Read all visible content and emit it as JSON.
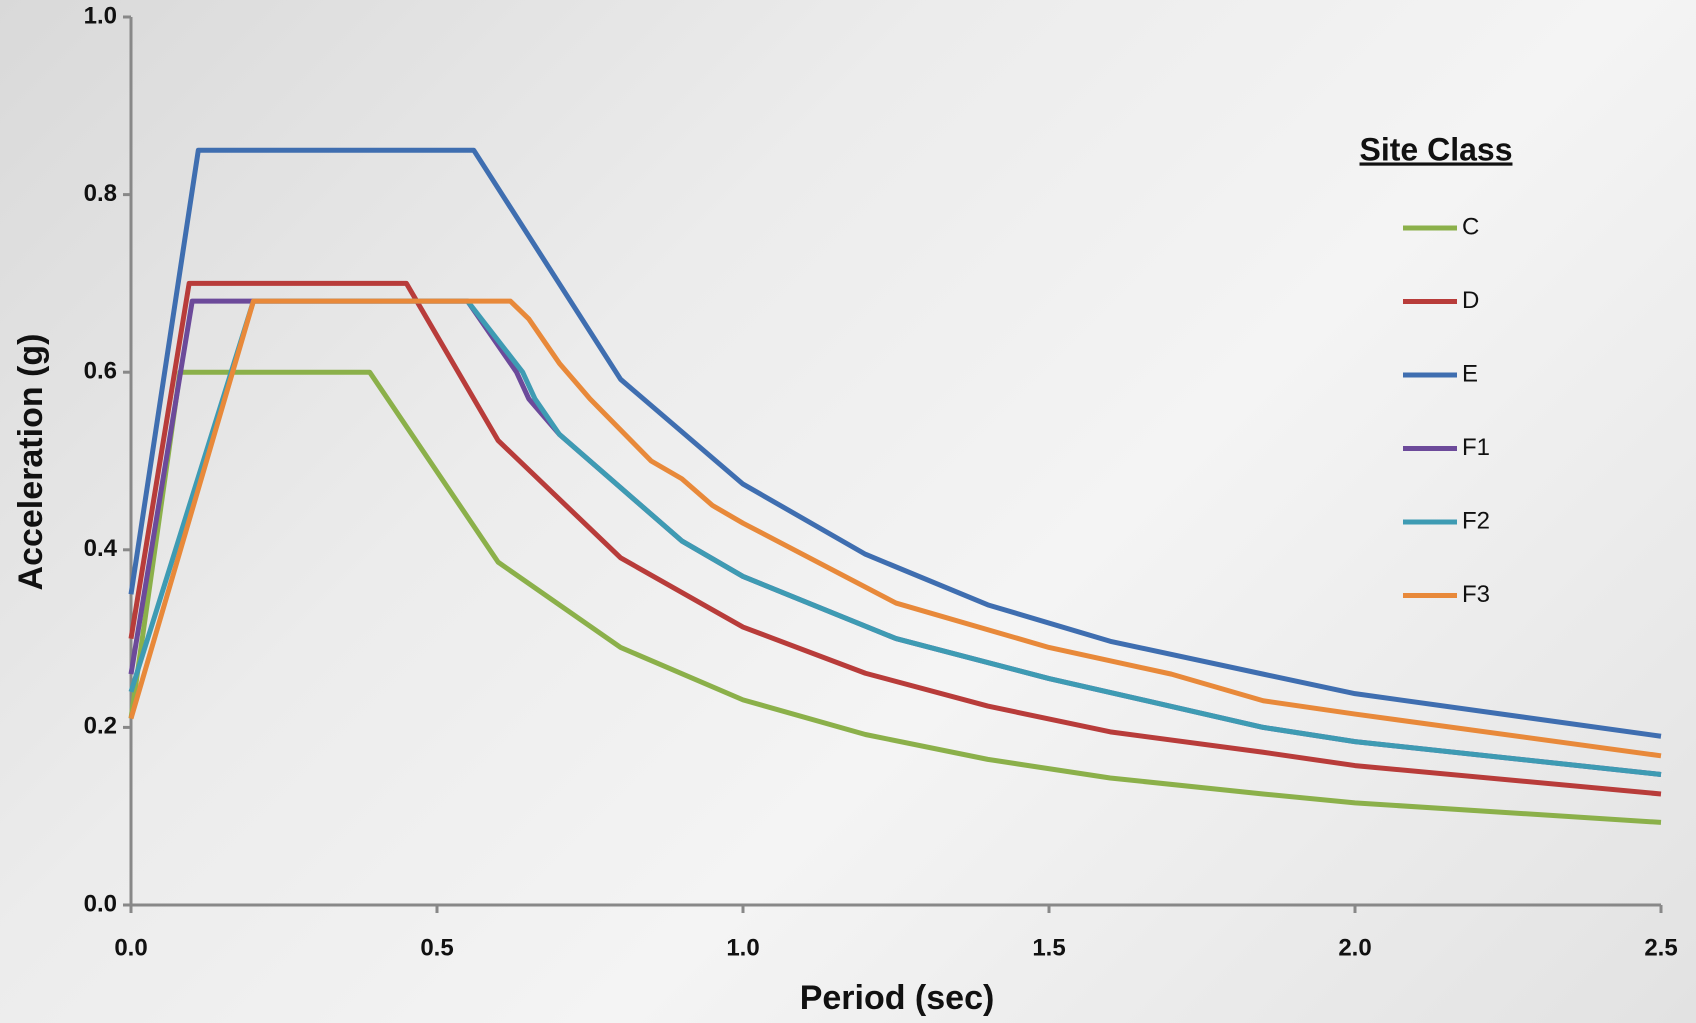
{
  "chart_data": {
    "type": "line",
    "x_label": "Period (sec)",
    "y_label": "Acceleration (g)",
    "legend_title": "Site Class",
    "legend_position": "right",
    "xlim": [
      0,
      2.5
    ],
    "ylim": [
      0,
      1.0
    ],
    "xticks": [
      {
        "value": 0,
        "label": "0.0"
      },
      0.5,
      {
        "value": 1,
        "label": "1.0"
      },
      1.5,
      {
        "value": 2,
        "label": "2.0"
      },
      2.5
    ],
    "yticks": [
      {
        "value": 0,
        "label": "0.0"
      },
      0.2,
      0.4,
      0.6,
      0.8,
      {
        "value": 1,
        "label": "1.0"
      }
    ],
    "series": [
      {
        "name": "C",
        "color": "#8bb04a",
        "x": [
          0,
          0.08,
          0.39,
          0.6,
          0.8,
          1.0,
          1.2,
          1.4,
          1.6,
          1.85,
          2.0,
          2.5
        ],
        "values": [
          0.21,
          0.6,
          0.6,
          0.386,
          0.29,
          0.231,
          0.192,
          0.164,
          0.143,
          0.125,
          0.115,
          0.093
        ]
      },
      {
        "name": "D",
        "color": "#b83c3a",
        "x": [
          0,
          0.095,
          0.45,
          0.6,
          0.8,
          1.0,
          1.2,
          1.4,
          1.6,
          1.85,
          2.0,
          2.5
        ],
        "values": [
          0.3,
          0.7,
          0.7,
          0.523,
          0.391,
          0.313,
          0.261,
          0.224,
          0.195,
          0.172,
          0.157,
          0.125
        ]
      },
      {
        "name": "E",
        "color": "#3f6eb0",
        "x": [
          0,
          0.11,
          0.56,
          0.8,
          1.0,
          1.2,
          1.4,
          1.6,
          1.85,
          2.0,
          2.5
        ],
        "values": [
          0.35,
          0.85,
          0.85,
          0.592,
          0.474,
          0.395,
          0.338,
          0.297,
          0.26,
          0.238,
          0.19
        ]
      },
      {
        "name": "F1",
        "color": "#6c4a9a",
        "x": [
          0,
          0.1,
          0.55,
          0.63,
          0.65,
          0.7,
          0.9,
          1.0,
          1.25,
          1.5,
          1.85,
          2.0,
          2.5
        ],
        "values": [
          0.26,
          0.68,
          0.68,
          0.6,
          0.57,
          0.53,
          0.41,
          0.37,
          0.3,
          0.255,
          0.2,
          0.184,
          0.147
        ]
      },
      {
        "name": "F2",
        "color": "#3e9bb3",
        "x": [
          0,
          0.2,
          0.55,
          0.64,
          0.66,
          0.7,
          0.9,
          1.0,
          1.25,
          1.5,
          1.85,
          2.0,
          2.5
        ],
        "values": [
          0.24,
          0.68,
          0.68,
          0.6,
          0.57,
          0.53,
          0.41,
          0.37,
          0.3,
          0.255,
          0.2,
          0.184,
          0.147
        ]
      },
      {
        "name": "F3",
        "color": "#e8893a",
        "x": [
          0,
          0.2,
          0.62,
          0.65,
          0.7,
          0.75,
          0.85,
          0.9,
          0.95,
          1.0,
          1.25,
          1.5,
          1.7,
          1.85,
          2.0,
          2.5
        ],
        "values": [
          0.21,
          0.68,
          0.68,
          0.66,
          0.61,
          0.57,
          0.5,
          0.48,
          0.45,
          0.43,
          0.34,
          0.29,
          0.26,
          0.23,
          0.215,
          0.168
        ]
      }
    ]
  }
}
